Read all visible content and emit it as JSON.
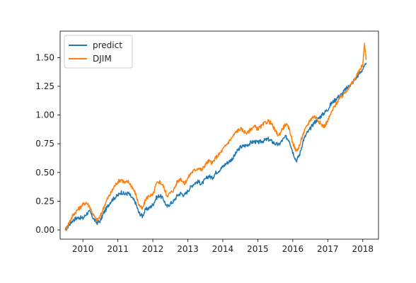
{
  "chart_data": {
    "type": "line",
    "title": "",
    "xlabel": "",
    "ylabel": "",
    "xlim": [
      2009.35,
      2018.45
    ],
    "ylim": [
      -0.08,
      1.73
    ],
    "x_ticks": [
      2010,
      2011,
      2012,
      2013,
      2014,
      2015,
      2016,
      2017,
      2018
    ],
    "x_tick_labels": [
      "2010",
      "2011",
      "2012",
      "2013",
      "2014",
      "2015",
      "2016",
      "2017",
      "2018"
    ],
    "y_ticks": [
      0.0,
      0.25,
      0.5,
      0.75,
      1.0,
      1.25,
      1.5
    ],
    "y_tick_labels": [
      "0.00",
      "0.25",
      "0.50",
      "0.75",
      "1.00",
      "1.25",
      "1.50"
    ],
    "grid": false,
    "legend_position": "top-left",
    "series": [
      {
        "name": "predict",
        "color": "#1f77b4",
        "x": [
          2009.5,
          2009.6,
          2009.7,
          2009.8,
          2009.9,
          2010.0,
          2010.1,
          2010.2,
          2010.3,
          2010.4,
          2010.5,
          2010.6,
          2010.7,
          2010.8,
          2010.9,
          2011.0,
          2011.1,
          2011.2,
          2011.3,
          2011.4,
          2011.5,
          2011.6,
          2011.7,
          2011.8,
          2011.9,
          2012.0,
          2012.1,
          2012.2,
          2012.3,
          2012.4,
          2012.5,
          2012.6,
          2012.7,
          2012.8,
          2012.9,
          2013.0,
          2013.1,
          2013.2,
          2013.3,
          2013.4,
          2013.5,
          2013.6,
          2013.7,
          2013.8,
          2013.9,
          2014.0,
          2014.1,
          2014.2,
          2014.3,
          2014.4,
          2014.5,
          2014.6,
          2014.7,
          2014.8,
          2014.9,
          2015.0,
          2015.1,
          2015.2,
          2015.3,
          2015.4,
          2015.5,
          2015.6,
          2015.7,
          2015.8,
          2015.9,
          2016.0,
          2016.1,
          2016.2,
          2016.3,
          2016.4,
          2016.5,
          2016.6,
          2016.7,
          2016.8,
          2016.9,
          2017.0,
          2017.1,
          2017.2,
          2017.3,
          2017.4,
          2017.5,
          2017.6,
          2017.7,
          2017.8,
          2017.9,
          2018.0,
          2018.1
        ],
        "values": [
          0.0,
          0.04,
          0.08,
          0.1,
          0.11,
          0.1,
          0.14,
          0.16,
          0.1,
          0.06,
          0.08,
          0.15,
          0.2,
          0.25,
          0.28,
          0.3,
          0.33,
          0.31,
          0.32,
          0.28,
          0.24,
          0.15,
          0.12,
          0.18,
          0.19,
          0.22,
          0.28,
          0.3,
          0.27,
          0.2,
          0.23,
          0.25,
          0.3,
          0.32,
          0.3,
          0.34,
          0.38,
          0.41,
          0.42,
          0.4,
          0.44,
          0.47,
          0.45,
          0.5,
          0.52,
          0.55,
          0.58,
          0.6,
          0.63,
          0.68,
          0.72,
          0.73,
          0.74,
          0.76,
          0.77,
          0.76,
          0.77,
          0.78,
          0.79,
          0.77,
          0.75,
          0.74,
          0.78,
          0.81,
          0.78,
          0.68,
          0.6,
          0.66,
          0.78,
          0.84,
          0.88,
          0.93,
          0.96,
          0.99,
          1.02,
          1.05,
          1.1,
          1.13,
          1.16,
          1.18,
          1.22,
          1.25,
          1.28,
          1.32,
          1.36,
          1.4,
          1.44
        ]
      },
      {
        "name": "DJIM",
        "color": "#ff7f0e",
        "x": [
          2009.5,
          2009.6,
          2009.7,
          2009.8,
          2009.9,
          2010.0,
          2010.1,
          2010.2,
          2010.3,
          2010.4,
          2010.5,
          2010.6,
          2010.7,
          2010.8,
          2010.9,
          2011.0,
          2011.1,
          2011.2,
          2011.3,
          2011.4,
          2011.5,
          2011.6,
          2011.7,
          2011.8,
          2011.9,
          2012.0,
          2012.1,
          2012.2,
          2012.3,
          2012.4,
          2012.5,
          2012.6,
          2012.7,
          2012.8,
          2012.9,
          2013.0,
          2013.1,
          2013.2,
          2013.3,
          2013.4,
          2013.5,
          2013.6,
          2013.7,
          2013.8,
          2013.9,
          2014.0,
          2014.1,
          2014.2,
          2014.3,
          2014.4,
          2014.5,
          2014.6,
          2014.7,
          2014.8,
          2014.9,
          2015.0,
          2015.1,
          2015.2,
          2015.3,
          2015.4,
          2015.5,
          2015.6,
          2015.7,
          2015.8,
          2015.9,
          2016.0,
          2016.1,
          2016.2,
          2016.3,
          2016.4,
          2016.5,
          2016.6,
          2016.7,
          2016.8,
          2016.9,
          2017.0,
          2017.1,
          2017.2,
          2017.3,
          2017.4,
          2017.5,
          2017.6,
          2017.7,
          2017.8,
          2017.9,
          2018.0,
          2018.05,
          2018.1
        ],
        "values": [
          0.0,
          0.06,
          0.12,
          0.16,
          0.19,
          0.22,
          0.24,
          0.2,
          0.13,
          0.08,
          0.12,
          0.2,
          0.27,
          0.32,
          0.38,
          0.42,
          0.44,
          0.41,
          0.42,
          0.38,
          0.32,
          0.22,
          0.18,
          0.27,
          0.3,
          0.3,
          0.4,
          0.42,
          0.38,
          0.3,
          0.32,
          0.35,
          0.42,
          0.45,
          0.4,
          0.45,
          0.5,
          0.52,
          0.54,
          0.52,
          0.57,
          0.6,
          0.58,
          0.63,
          0.66,
          0.7,
          0.74,
          0.78,
          0.82,
          0.86,
          0.88,
          0.86,
          0.84,
          0.88,
          0.9,
          0.88,
          0.9,
          0.93,
          0.95,
          0.92,
          0.86,
          0.82,
          0.88,
          0.92,
          0.88,
          0.76,
          0.68,
          0.74,
          0.84,
          0.9,
          0.96,
          0.99,
          0.97,
          0.92,
          0.9,
          0.95,
          1.02,
          1.08,
          1.13,
          1.16,
          1.2,
          1.24,
          1.28,
          1.33,
          1.38,
          1.44,
          1.62,
          1.48
        ]
      }
    ]
  }
}
